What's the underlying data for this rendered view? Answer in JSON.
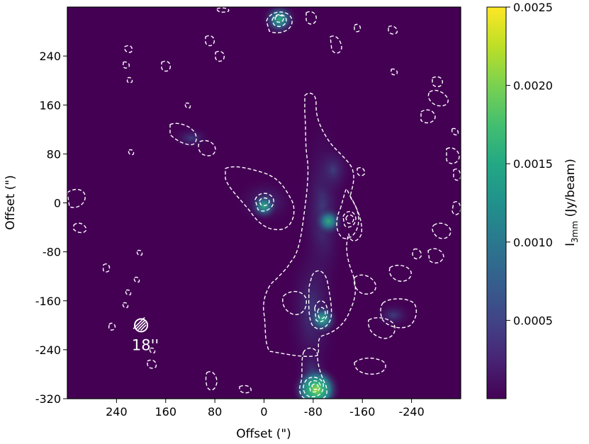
{
  "chart_data": {
    "type": "heatmap",
    "title": "",
    "xlabel": "Offset (\")",
    "ylabel": "Offset (\")",
    "xlim": [
      320,
      -320
    ],
    "ylim": [
      -320,
      320
    ],
    "x_ticks": [
      240,
      160,
      80,
      0,
      -80,
      -160,
      -240
    ],
    "x_tick_labels": [
      "240",
      "160",
      "80",
      "0",
      "-80",
      "-160",
      "-240"
    ],
    "y_ticks": [
      240,
      160,
      80,
      0,
      -80,
      -160,
      -240,
      -320
    ],
    "y_tick_labels": [
      "240",
      "160",
      "80",
      "0",
      "-80",
      "-160",
      "-240",
      "-320"
    ],
    "colormap": "viridis",
    "colorbar": {
      "label_main": "I",
      "label_sub": "3mm",
      "label_unit": " (Jy/beam)",
      "vmin": 0.0,
      "vmax": 0.0025,
      "ticks": [
        0.0005,
        0.001,
        0.0015,
        0.002,
        0.0025
      ],
      "tick_labels": [
        "0.0005",
        "0.0010",
        "0.0015",
        "0.0020",
        "0.0025"
      ]
    },
    "beam_label": "18''",
    "beam_position": [
      200,
      -200
    ],
    "peaks": [
      {
        "x": -85,
        "y": -305,
        "value": 0.0024
      },
      {
        "x": -25,
        "y": 300,
        "value": 0.0012
      },
      {
        "x": -95,
        "y": -190,
        "value": 0.0011
      },
      {
        "x": -105,
        "y": -30,
        "value": 0.0009
      },
      {
        "x": 0,
        "y": -5,
        "value": 0.0008
      }
    ],
    "colors": {
      "background": "#440154",
      "contour": "#ffffff"
    }
  }
}
